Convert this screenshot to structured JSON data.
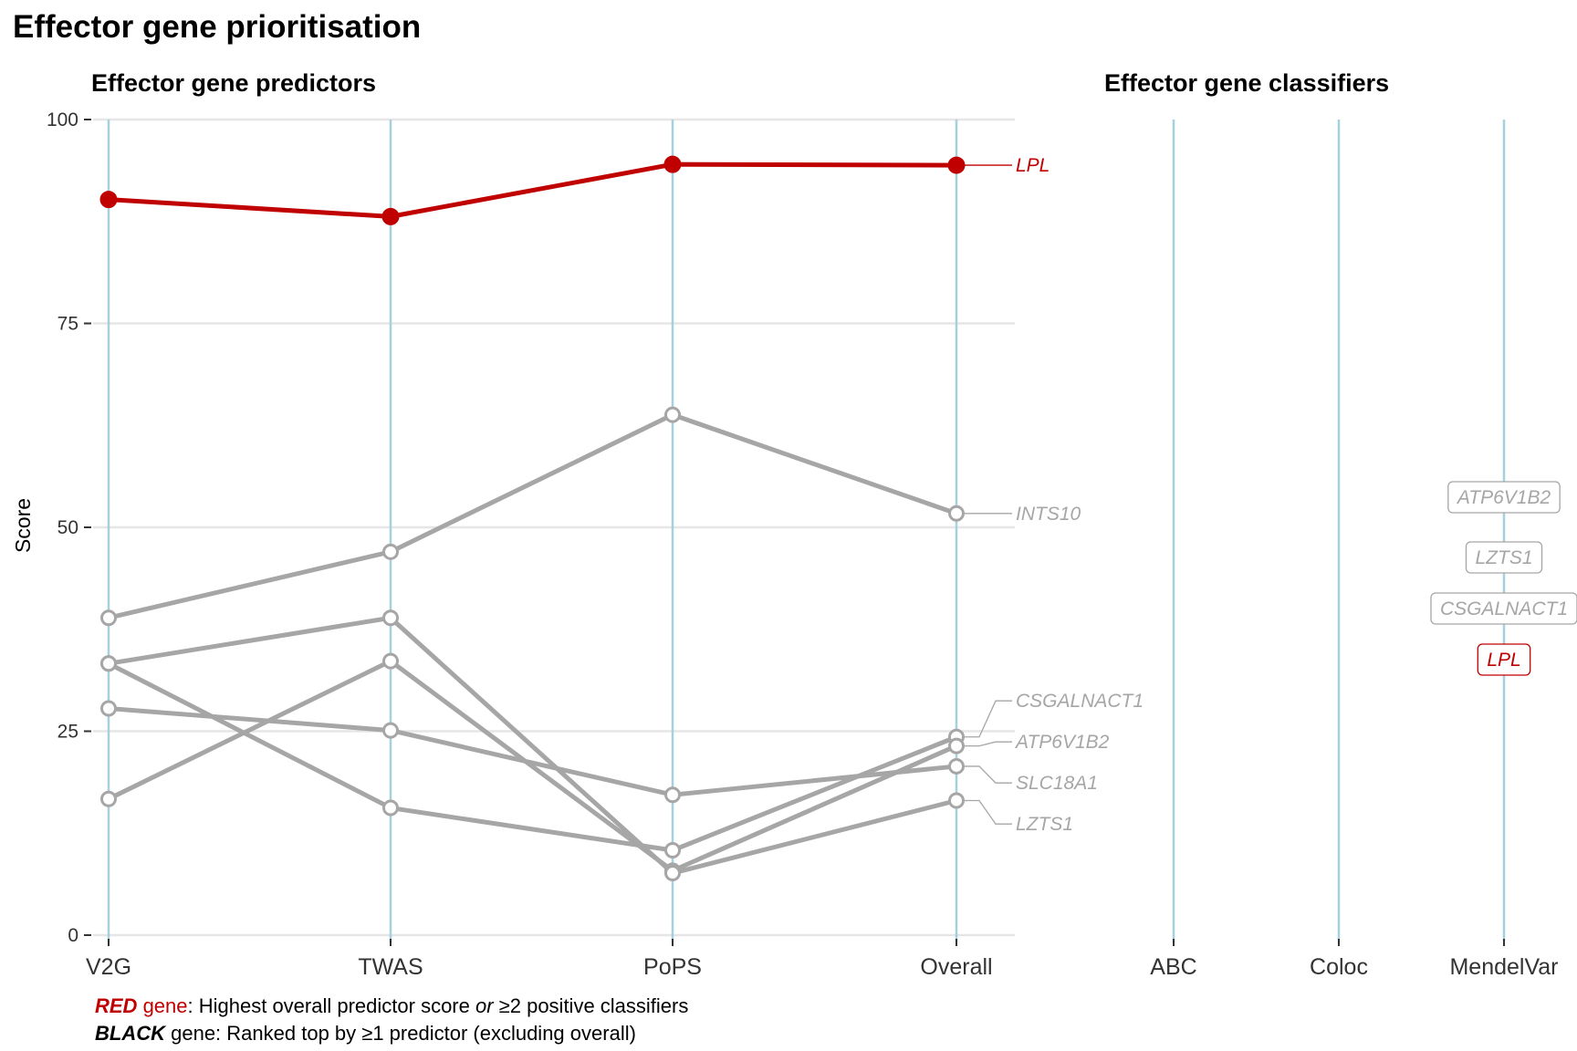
{
  "title": "Effector gene prioritisation",
  "captions": {
    "line1": {
      "red_bold": "RED",
      "red_word": " gene",
      "text_a": ": Highest overall predictor score ",
      "or_word": "or",
      "text_b": " ≥2 positive classifiers"
    },
    "line2": {
      "black_bold": "BLACK",
      "text": " gene: Ranked top by ≥1 predictor (excluding overall)"
    }
  },
  "colors": {
    "red": "#c00000",
    "grey": "#a6a6a6",
    "axis_line": "#a6d0de",
    "grid": "#e6e6e6"
  },
  "chart_data": [
    {
      "type": "line",
      "title": "Effector gene predictors",
      "ylabel": "Score",
      "xlabel": "",
      "ylim": [
        0,
        100
      ],
      "yticks": [
        0,
        25,
        50,
        75,
        100
      ],
      "categories": [
        "V2G",
        "TWAS",
        "PoPS",
        "Overall"
      ],
      "grid": "horizontal",
      "series": [
        {
          "name": "LPL",
          "color": "red",
          "values": [
            90.2,
            88.1,
            94.5,
            94.4
          ]
        },
        {
          "name": "INTS10",
          "color": "grey",
          "values": [
            38.9,
            47.0,
            63.8,
            51.7
          ]
        },
        {
          "name": "CSGALNACT1",
          "color": "grey",
          "values": [
            33.3,
            15.6,
            10.4,
            24.3
          ]
        },
        {
          "name": "ATP6V1B2",
          "color": "grey",
          "values": [
            16.7,
            33.6,
            7.9,
            23.2
          ]
        },
        {
          "name": "SLC18A1",
          "color": "grey",
          "values": [
            27.8,
            25.1,
            17.2,
            20.7
          ]
        },
        {
          "name": "LZTS1",
          "color": "grey",
          "values": [
            33.3,
            38.9,
            7.6,
            16.5
          ]
        }
      ]
    },
    {
      "type": "scatter",
      "title": "Effector gene classifiers",
      "categories": [
        "ABC",
        "Coloc",
        "MendelVar"
      ],
      "points": [
        {
          "category": "MendelVar",
          "label": "ATP6V1B2",
          "color": "grey"
        },
        {
          "category": "MendelVar",
          "label": "LZTS1",
          "color": "grey"
        },
        {
          "category": "MendelVar",
          "label": "CSGALNACT1",
          "color": "grey"
        },
        {
          "category": "MendelVar",
          "label": "LPL",
          "color": "red"
        }
      ]
    }
  ]
}
